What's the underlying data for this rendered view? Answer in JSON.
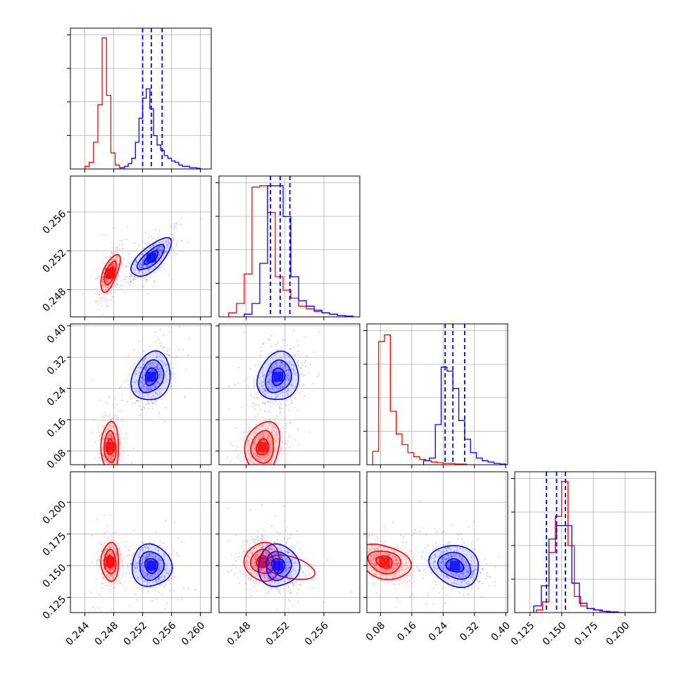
{
  "chart_data": {
    "type": "corner",
    "grid": true,
    "colors": {
      "red": "#ff0000",
      "blue": "#0000ff"
    },
    "parameters": [
      {
        "range": [
          0.242,
          0.2615
        ],
        "ticks": [
          0.244,
          0.248,
          0.252,
          0.256,
          0.26
        ],
        "tick_labels": [
          "0.244",
          "0.248",
          "0.252",
          "0.256",
          "0.260"
        ]
      },
      {
        "range": [
          0.2452,
          0.2597
        ],
        "ticks": [
          0.248,
          0.252,
          0.256
        ],
        "tick_labels": [
          "0.248",
          "0.252",
          "0.256"
        ]
      },
      {
        "range": [
          0.045,
          0.405
        ],
        "ticks": [
          0.08,
          0.16,
          0.24,
          0.32,
          0.4
        ],
        "tick_labels": [
          "0.08",
          "0.16",
          "0.24",
          "0.32",
          "0.40"
        ]
      },
      {
        "range": [
          0.113,
          0.224
        ],
        "ticks": [
          0.125,
          0.15,
          0.175,
          0.2
        ],
        "tick_labels": [
          "0.125",
          "0.150",
          "0.175",
          "0.200"
        ]
      }
    ],
    "quantiles": [
      [
        0.252,
        0.2532,
        0.2547
      ],
      [
        0.2505,
        0.2515,
        0.2525
      ],
      [
        0.245,
        0.265,
        0.295
      ],
      [
        0.138,
        0.146,
        0.153
      ]
    ],
    "series": [
      {
        "color": "red",
        "means": [
          0.2475,
          0.2497,
          0.09,
          0.153
        ],
        "sds": [
          0.0006,
          0.0009,
          0.03,
          0.007
        ],
        "corr": [
          [
            1,
            0.6,
            0,
            0
          ],
          [
            0.6,
            1,
            0.3,
            0
          ],
          [
            0,
            0.3,
            1,
            -0.4
          ],
          [
            0,
            0,
            -0.4,
            1
          ]
        ],
        "histograms": [
          {
            "edges": [
              0.244,
              0.2446,
              0.2452,
              0.2458,
              0.2464,
              0.247,
              0.2476,
              0.2482,
              0.2488,
              0.2494,
              0.25
            ],
            "counts": [
              0.02,
              0.05,
              0.2,
              0.48,
              0.98,
              0.55,
              0.12,
              0.03,
              0.01,
              0.0
            ]
          },
          {
            "edges": [
              0.2462,
              0.247,
              0.2478,
              0.2486,
              0.2494,
              0.2502,
              0.251,
              0.2518,
              0.2526,
              0.2534,
              0.2542,
              0.255,
              0.2558,
              0.2566,
              0.2574,
              0.2582,
              0.259
            ],
            "counts": [
              0.03,
              0.1,
              0.32,
              0.97,
              0.98,
              0.78,
              0.3,
              0.2,
              0.14,
              0.08,
              0.06,
              0.04,
              0.03,
              0.02,
              0.01,
              0.005
            ]
          },
          {
            "edges": [
              0.06,
              0.075,
              0.09,
              0.105,
              0.12,
              0.135,
              0.15,
              0.165,
              0.18,
              0.195,
              0.21,
              0.225,
              0.24,
              0.255,
              0.27,
              0.285,
              0.3
            ],
            "counts": [
              0.1,
              0.92,
              0.97,
              0.4,
              0.23,
              0.15,
              0.09,
              0.06,
              0.04,
              0.03,
              0.02,
              0.015,
              0.01,
              0.01,
              0.005,
              0.005
            ]
          },
          {
            "edges": [
              0.125,
              0.13,
              0.135,
              0.14,
              0.145,
              0.15,
              0.155,
              0.16,
              0.165,
              0.17,
              0.175,
              0.18,
              0.185,
              0.19,
              0.195,
              0.2,
              0.205,
              0.21,
              0.215,
              0.22
            ],
            "counts": [
              0.0,
              0.02,
              0.08,
              0.45,
              0.72,
              0.98,
              0.5,
              0.12,
              0.05,
              0.03,
              0.02,
              0.01,
              0.005,
              0.005,
              0.0,
              0.0,
              0.0,
              0.0,
              0.0
            ]
          }
        ],
        "extra_contours": [
          {
            "panel": [
              1,
              3
            ],
            "center": [
              0.2525,
              0.1485
            ],
            "axes": [
              0.0026,
              0.0085
            ],
            "angle_deg": 15
          }
        ]
      },
      {
        "color": "blue",
        "means": [
          0.2532,
          0.2513,
          0.27,
          0.15
        ],
        "sds": [
          0.0013,
          0.001,
          0.03,
          0.008
        ],
        "corr": [
          [
            1,
            0.75,
            0.4,
            -0.2
          ],
          [
            0.75,
            1,
            0.3,
            -0.2
          ],
          [
            0.4,
            0.3,
            1,
            -0.4
          ],
          [
            -0.2,
            -0.2,
            -0.4,
            1
          ]
        ],
        "histograms": [
          {
            "edges": [
              0.248,
              0.2485,
              0.249,
              0.2495,
              0.25,
              0.2505,
              0.251,
              0.2515,
              0.252,
              0.2525,
              0.253,
              0.2535,
              0.254,
              0.2545,
              0.255,
              0.2555,
              0.256,
              0.2565,
              0.257,
              0.2575,
              0.258,
              0.2585,
              0.259,
              0.2595,
              0.26
            ],
            "counts": [
              0.0,
              0.0,
              0.01,
              0.02,
              0.04,
              0.08,
              0.2,
              0.38,
              0.53,
              0.6,
              0.45,
              0.25,
              0.18,
              0.14,
              0.1,
              0.08,
              0.06,
              0.05,
              0.03,
              0.02,
              0.02,
              0.01,
              0.01,
              0.005
            ]
          },
          {
            "edges": [
              0.2478,
              0.2486,
              0.2494,
              0.2502,
              0.251,
              0.2518,
              0.2526,
              0.2534,
              0.2542,
              0.255,
              0.2558,
              0.2566,
              0.2574,
              0.2582,
              0.259
            ],
            "counts": [
              0.02,
              0.1,
              0.4,
              0.98,
              0.98,
              0.75,
              0.3,
              0.12,
              0.08,
              0.05,
              0.03,
              0.02,
              0.01,
              0.005
            ]
          },
          {
            "edges": [
              0.19,
              0.205,
              0.22,
              0.235,
              0.25,
              0.265,
              0.28,
              0.295,
              0.31,
              0.325,
              0.34,
              0.355,
              0.37,
              0.385,
              0.4
            ],
            "counts": [
              0.03,
              0.05,
              0.3,
              0.73,
              0.7,
              0.57,
              0.33,
              0.19,
              0.09,
              0.05,
              0.03,
              0.02,
              0.01,
              0.005
            ]
          },
          {
            "edges": [
              0.128,
              0.134,
              0.14,
              0.146,
              0.152,
              0.158,
              0.164,
              0.17,
              0.176,
              0.182,
              0.188,
              0.194,
              0.2
            ],
            "counts": [
              0.05,
              0.2,
              0.55,
              0.65,
              0.65,
              0.22,
              0.07,
              0.03,
              0.02,
              0.01,
              0.005,
              0.0
            ]
          }
        ],
        "extra_contours": []
      }
    ]
  }
}
